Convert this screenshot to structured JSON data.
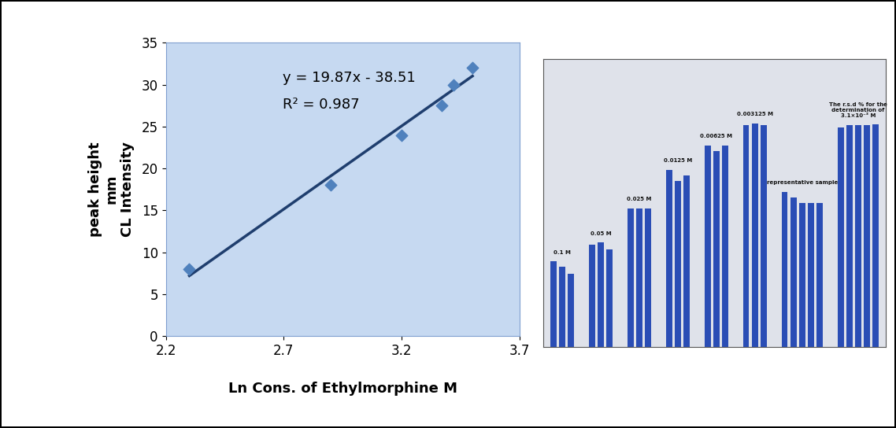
{
  "chart_data": [
    {
      "type": "scatter",
      "x_label": "Ln Cons. of Ethylmorphine M",
      "y_label": "peak height\nmm\nCL Intensity",
      "x": [
        2.3,
        2.9,
        3.2,
        3.37,
        3.42,
        3.5
      ],
      "values": [
        8,
        18,
        24,
        27.5,
        30,
        32
      ],
      "color": "#4f81bd",
      "marker": "diamond",
      "trendline": {
        "slope": 19.87,
        "intercept": -38.51,
        "color": "#1f3e6e",
        "equation": "y = 19.87x - 38.51",
        "r_squared": "R² = 0.987"
      },
      "xlim": [
        2.2,
        3.7
      ],
      "xticks": [
        2.2,
        2.7,
        3.2,
        3.7
      ],
      "ylim": [
        0,
        35
      ],
      "yticks": [
        0,
        5,
        10,
        15,
        20,
        25,
        30,
        35
      ]
    },
    {
      "type": "bar",
      "color": "#2a4db5",
      "tick_labels": false,
      "ylim": [
        0,
        260
      ],
      "groups": [
        {
          "label": "0.1 M",
          "values": [
            77,
            72,
            66
          ]
        },
        {
          "label": "0.05 M",
          "values": [
            92,
            94,
            88
          ]
        },
        {
          "label": "0.025 M",
          "values": [
            125,
            125,
            125
          ]
        },
        {
          "label": "0.0125 M",
          "values": [
            160,
            150,
            155
          ]
        },
        {
          "label": "0.00625 M",
          "values": [
            182,
            177,
            182
          ]
        },
        {
          "label": "0.003125 M",
          "values": [
            200,
            202,
            200
          ]
        },
        {
          "label": "representative sample",
          "values": [
            140,
            135,
            130,
            130,
            130
          ]
        },
        {
          "label": "The r.s.d % for the\ndetermination of\n3.1×10⁻³ M",
          "values": [
            198,
            200,
            200,
            200,
            201
          ]
        }
      ]
    }
  ]
}
